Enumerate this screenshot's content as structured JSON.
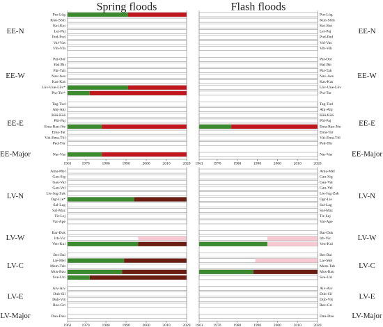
{
  "chart_data": [
    {
      "type": "timeline",
      "title": "Spring floods",
      "xlim": [
        1961,
        2020
      ],
      "xticks": [
        1961,
        1970,
        1980,
        1990,
        2000,
        2010,
        2020
      ],
      "sections": [
        {
          "groups": [
            {
              "name": "EE-N",
              "rows": [
                {
                  "name": "Pur-Lüg",
                  "segments": [
                    {
                      "start": 1961,
                      "end": 1991,
                      "color": "#3c8a2e"
                    },
                    {
                      "start": 1991,
                      "end": 2020,
                      "color": "#c0161e"
                    }
                  ]
                },
                {
                  "name": "Kun-Sõm",
                  "segments": []
                },
                {
                  "name": "Kei-Kei",
                  "segments": []
                },
                {
                  "name": "Lei-Paj",
                  "segments": []
                },
                {
                  "name": "Pud-Pud",
                  "segments": []
                },
                {
                  "name": "Val-Vas",
                  "segments": []
                },
                {
                  "name": "Vih-Vih",
                  "segments": []
                }
              ]
            },
            {
              "name": "EE-W",
              "rows": [
                {
                  "name": "Pär-Oor",
                  "segments": []
                },
                {
                  "name": "Hal-Rii",
                  "segments": []
                },
                {
                  "name": "Pär-Tah",
                  "segments": []
                },
                {
                  "name": "Nav-Aes",
                  "segments": []
                },
                {
                  "name": "Kas-Kas",
                  "segments": []
                },
                {
                  "name": "Lõv-Uue-Lõv*",
                  "segments": [
                    {
                      "start": 1961,
                      "end": 1991,
                      "color": "#3c8a2e"
                    },
                    {
                      "start": 1991,
                      "end": 2020,
                      "color": "#c0161e"
                    }
                  ]
                },
                {
                  "name": "Pra-Tor*",
                  "segments": [
                    {
                      "start": 1961,
                      "end": 1972,
                      "color": "#3c8a2e"
                    },
                    {
                      "start": 1972,
                      "end": 2020,
                      "color": "#c0161e"
                    }
                  ]
                }
              ]
            },
            {
              "name": "EE-E",
              "rows": [
                {
                  "name": "Tag-Tud",
                  "segments": []
                },
                {
                  "name": "Ahj-Ahj",
                  "segments": []
                },
                {
                  "name": "Kää-Kää",
                  "segments": []
                },
                {
                  "name": "Põl-Paj",
                  "segments": []
                },
                {
                  "name": "Ema-Ran-Jõe",
                  "segments": [
                    {
                      "start": 1961,
                      "end": 1978,
                      "color": "#3c8a2e"
                    },
                    {
                      "start": 1978,
                      "end": 2020,
                      "color": "#c0161e"
                    }
                  ]
                },
                {
                  "name": "Ema-Tar",
                  "segments": []
                },
                {
                  "name": "Väi-Ema-Tõl",
                  "segments": []
                },
                {
                  "name": "Ped-Tõr",
                  "segments": []
                }
              ]
            },
            {
              "name": "EE-Major",
              "rows": [
                {
                  "name": "Nar-Vas",
                  "segments": [
                    {
                      "start": 1961,
                      "end": 1978,
                      "color": "#3c8a2e"
                    },
                    {
                      "start": 1978,
                      "end": 2020,
                      "color": "#c0161e"
                    }
                  ]
                }
              ]
            }
          ]
        },
        {
          "groups": [
            {
              "name": "LV-N",
              "rows": [
                {
                  "name": "Ama-Mel",
                  "segments": []
                },
                {
                  "name": "Gau-Sig",
                  "segments": []
                },
                {
                  "name": "Gau-Val",
                  "segments": []
                },
                {
                  "name": "Gau-Vel",
                  "segments": []
                },
                {
                  "name": "Lie-Jug-Zak",
                  "segments": []
                },
                {
                  "name": "Ogr-Lie*",
                  "segments": [
                    {
                      "start": 1961,
                      "end": 1994,
                      "color": "#3c8a2e"
                    },
                    {
                      "start": 1994,
                      "end": 2020,
                      "color": "#6b1d12"
                    }
                  ]
                },
                {
                  "name": "Sal-Lag",
                  "segments": []
                },
                {
                  "name": "Sal-Maz",
                  "segments": []
                },
                {
                  "name": "Tir-Lej",
                  "segments": []
                },
                {
                  "name": "Vai-Ape",
                  "segments": []
                }
              ]
            },
            {
              "name": "LV-W",
              "rows": [
                {
                  "name": "Bar-Duk",
                  "segments": []
                },
                {
                  "name": "Irb-Vic",
                  "segments": [
                    {
                      "start": 1996,
                      "end": 2020,
                      "color": "#f6c9d3"
                    }
                  ]
                },
                {
                  "name": "Ven-Kul",
                  "segments": [
                    {
                      "start": 1961,
                      "end": 1996,
                      "color": "#3c8a2e"
                    },
                    {
                      "start": 1996,
                      "end": 2020,
                      "color": "#6b1d12"
                    }
                  ]
                }
              ]
            },
            {
              "name": "LV-C",
              "rows": [
                {
                  "name": "Ber-Bal",
                  "segments": []
                },
                {
                  "name": "Lie-Mel",
                  "segments": [
                    {
                      "start": 1961,
                      "end": 1989,
                      "color": "#3c8a2e"
                    },
                    {
                      "start": 1989,
                      "end": 2020,
                      "color": "#6b1d12"
                    }
                  ]
                },
                {
                  "name": "Mem-Tab",
                  "segments": []
                },
                {
                  "name": "Mus-Bau",
                  "segments": [
                    {
                      "start": 1961,
                      "end": 1988,
                      "color": "#3c8a2e"
                    },
                    {
                      "start": 1988,
                      "end": 2020,
                      "color": "#6b1d12"
                    }
                  ]
                },
                {
                  "name": "Sve-Uzi",
                  "segments": [
                    {
                      "start": 1961,
                      "end": 1972,
                      "color": "#3c8a2e"
                    },
                    {
                      "start": 1972,
                      "end": 2020,
                      "color": "#6b1d12"
                    }
                  ]
                }
              ]
            },
            {
              "name": "LV-E",
              "rows": [
                {
                  "name": "Aiv-Aiv",
                  "segments": []
                },
                {
                  "name": "Dub-Sil",
                  "segments": []
                },
                {
                  "name": "Dub-Viš",
                  "segments": []
                },
                {
                  "name": "Rez-Gri",
                  "segments": []
                }
              ]
            },
            {
              "name": "LV-Major",
              "rows": [
                {
                  "name": "Dau-Dau",
                  "segments": []
                }
              ]
            }
          ]
        }
      ]
    },
    {
      "type": "timeline",
      "title": "Flash floods",
      "xlim": [
        1961,
        2020
      ],
      "xticks": [
        1961,
        1970,
        1980,
        1990,
        2000,
        2010,
        2020
      ],
      "sections": [
        {
          "groups": [
            {
              "name": "EE-N",
              "rows": [
                {
                  "name": "Pur-Lüg",
                  "segments": []
                },
                {
                  "name": "Kun-Sõm",
                  "segments": []
                },
                {
                  "name": "Kei-Kei",
                  "segments": []
                },
                {
                  "name": "Lei-Paj",
                  "segments": []
                },
                {
                  "name": "Pud-Pud",
                  "segments": []
                },
                {
                  "name": "Val-Vas",
                  "segments": []
                },
                {
                  "name": "Vih-Vih",
                  "segments": []
                }
              ]
            },
            {
              "name": "EE-W",
              "rows": [
                {
                  "name": "Pär-Oor",
                  "segments": []
                },
                {
                  "name": "Hal-Rii",
                  "segments": []
                },
                {
                  "name": "Pär-Tah",
                  "segments": []
                },
                {
                  "name": "Nav-Aes",
                  "segments": []
                },
                {
                  "name": "Kas-Kas",
                  "segments": []
                },
                {
                  "name": "Lõv-Uue-Lõv",
                  "segments": []
                },
                {
                  "name": "Pra-Tor",
                  "segments": []
                }
              ]
            },
            {
              "name": "EE-E",
              "rows": [
                {
                  "name": "Tag-Tud",
                  "segments": []
                },
                {
                  "name": "Ahj-Ahj",
                  "segments": []
                },
                {
                  "name": "Kää-Kää",
                  "segments": []
                },
                {
                  "name": "Põl-Paj",
                  "segments": []
                },
                {
                  "name": "Ema-Ran-Jõe",
                  "segments": [
                    {
                      "start": 1961,
                      "end": 1977,
                      "color": "#3c8a2e"
                    },
                    {
                      "start": 1977,
                      "end": 2020,
                      "color": "#c0161e"
                    }
                  ]
                },
                {
                  "name": "Ema-Tar",
                  "segments": []
                },
                {
                  "name": "Väi-Ema-Tõl",
                  "segments": []
                },
                {
                  "name": "Ped-Tõr",
                  "segments": []
                }
              ]
            },
            {
              "name": "EE-Major",
              "rows": [
                {
                  "name": "Nar-Vas",
                  "segments": []
                }
              ]
            }
          ]
        },
        {
          "groups": [
            {
              "name": "LV-N",
              "rows": [
                {
                  "name": "Ama-Mel",
                  "segments": []
                },
                {
                  "name": "Gau-Sig",
                  "segments": []
                },
                {
                  "name": "Gau-Val",
                  "segments": []
                },
                {
                  "name": "Gau-Vel",
                  "segments": []
                },
                {
                  "name": "Lie-Jug-Zak",
                  "segments": []
                },
                {
                  "name": "Ogr-Lie",
                  "segments": []
                },
                {
                  "name": "Sal-Lag",
                  "segments": []
                },
                {
                  "name": "Sal-Maz",
                  "segments": []
                },
                {
                  "name": "Tir-Lej",
                  "segments": []
                },
                {
                  "name": "Vai-Ape",
                  "segments": []
                }
              ]
            },
            {
              "name": "LV-W",
              "rows": [
                {
                  "name": "Bar-Duk",
                  "segments": []
                },
                {
                  "name": "Irb-Vic",
                  "segments": [
                    {
                      "start": 1995,
                      "end": 2020,
                      "color": "#f6c9d3"
                    }
                  ]
                },
                {
                  "name": "Ven-Kul",
                  "segments": [
                    {
                      "start": 1961,
                      "end": 1995,
                      "color": "#3c8a2e"
                    },
                    {
                      "start": 1995,
                      "end": 2020,
                      "color": "#f6c9d3"
                    }
                  ]
                }
              ]
            },
            {
              "name": "LV-C",
              "rows": [
                {
                  "name": "Ber-Bal",
                  "segments": []
                },
                {
                  "name": "Lie-Mel",
                  "segments": [
                    {
                      "start": 1989,
                      "end": 2020,
                      "color": "#f6c9d3"
                    }
                  ]
                },
                {
                  "name": "Mem-Tab",
                  "segments": []
                },
                {
                  "name": "Mus-Bau",
                  "segments": [
                    {
                      "start": 1961,
                      "end": 1988,
                      "color": "#3c8a2e"
                    },
                    {
                      "start": 1988,
                      "end": 2020,
                      "color": "#6b1d12"
                    }
                  ]
                },
                {
                  "name": "Sve-Uzi",
                  "segments": []
                }
              ]
            },
            {
              "name": "LV-E",
              "rows": [
                {
                  "name": "Aiv-Aiv",
                  "segments": []
                },
                {
                  "name": "Dub-Sil",
                  "segments": []
                },
                {
                  "name": "Dub-Viš",
                  "segments": []
                },
                {
                  "name": "Rez-Gri",
                  "segments": []
                }
              ]
            },
            {
              "name": "LV-Major",
              "rows": [
                {
                  "name": "Dau-Dau",
                  "segments": []
                }
              ]
            }
          ]
        }
      ]
    }
  ]
}
